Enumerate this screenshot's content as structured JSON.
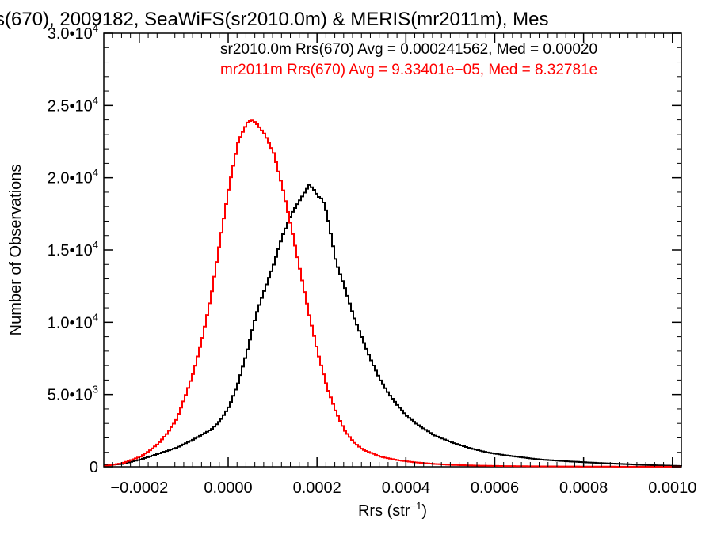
{
  "chart_data": {
    "type": "line",
    "title": "s(670), 2009182, SeaWiFS(sr2010.0m) & MERIS(mr2011m), Mes",
    "xlabel_main": "Rrs (str",
    "xlabel_sup": "−1",
    "xlabel_end": ")",
    "ylabel": "Number of Observations",
    "xlim": [
      -0.00028,
      0.00102
    ],
    "ylim": [
      0,
      30000
    ],
    "x_ticks": [
      {
        "value": -0.0002,
        "label": "−0.0002"
      },
      {
        "value": 0.0,
        "label": "0.0000"
      },
      {
        "value": 0.0002,
        "label": "0.0002"
      },
      {
        "value": 0.0004,
        "label": "0.0004"
      },
      {
        "value": 0.0006,
        "label": "0.0006"
      },
      {
        "value": 0.0008,
        "label": "0.0008"
      },
      {
        "value": 0.001,
        "label": "0.0010"
      }
    ],
    "y_ticks": [
      {
        "value": 0,
        "mant": "0",
        "exp": ""
      },
      {
        "value": 5000,
        "mant": "5.0•10",
        "exp": "3"
      },
      {
        "value": 10000,
        "mant": "1.0•10",
        "exp": "4"
      },
      {
        "value": 15000,
        "mant": "1.5•10",
        "exp": "4"
      },
      {
        "value": 20000,
        "mant": "2.0•10",
        "exp": "4"
      },
      {
        "value": 25000,
        "mant": "2.5•10",
        "exp": "4"
      },
      {
        "value": 30000,
        "mant": "3.0•10",
        "exp": "4"
      }
    ],
    "legend": [
      {
        "label": "sr2010.0m Rrs(670) Avg = 0.000241562, Med = 0.00020",
        "color": "#000000"
      },
      {
        "label": "mr2011m Rrs(670) Avg = 9.33401e−05, Med = 8.32781e",
        "color": "#ff0000"
      }
    ],
    "series": [
      {
        "color": "#000000",
        "x": [
          -0.00028,
          -0.00024,
          -0.0002,
          -0.00016,
          -0.00012,
          -8e-05,
          -4e-05,
          -2e-05,
          0.0,
          2e-05,
          4e-05,
          6e-05,
          8e-05,
          0.0001,
          0.00012,
          0.00014,
          0.00016,
          0.00018,
          0.00019,
          0.0002,
          0.00021,
          0.00022,
          0.00024,
          0.00026,
          0.00028,
          0.0003,
          0.00032,
          0.00034,
          0.00036,
          0.00038,
          0.0004,
          0.00042,
          0.00044,
          0.00046,
          0.0005,
          0.00054,
          0.00058,
          0.00062,
          0.00066,
          0.0007,
          0.00076,
          0.00082,
          0.00088,
          0.00094,
          0.001,
          0.00102
        ],
        "y": [
          100,
          200,
          500,
          900,
          1300,
          1900,
          2600,
          3200,
          4200,
          5800,
          8000,
          10500,
          12300,
          14000,
          16000,
          17500,
          18500,
          19500,
          19200,
          18700,
          18500,
          17500,
          14200,
          12400,
          10400,
          8800,
          7300,
          6000,
          5000,
          4200,
          3500,
          3000,
          2600,
          2200,
          1700,
          1300,
          1000,
          800,
          650,
          500,
          380,
          280,
          200,
          120,
          70,
          50
        ]
      },
      {
        "color": "#ff0000",
        "x": [
          -0.00028,
          -0.00024,
          -0.0002,
          -0.00018,
          -0.00016,
          -0.00014,
          -0.00012,
          -0.0001,
          -8e-05,
          -6e-05,
          -4e-05,
          -2e-05,
          0.0,
          2e-05,
          4e-05,
          5e-05,
          6e-05,
          8e-05,
          0.0001,
          0.00012,
          0.00014,
          0.00016,
          0.00018,
          0.0002,
          0.00022,
          0.00024,
          0.00026,
          0.00028,
          0.0003,
          0.00034,
          0.00038,
          0.00042,
          0.00046,
          0.0005,
          0.00056,
          0.00062,
          0.0007,
          0.0008,
          0.0009,
          0.001,
          0.00102
        ],
        "y": [
          50,
          250,
          700,
          1100,
          1600,
          2300,
          3200,
          4800,
          6600,
          9000,
          12000,
          15800,
          19500,
          22500,
          23800,
          24000,
          23800,
          23000,
          21700,
          19300,
          16500,
          13500,
          10500,
          7800,
          5500,
          3800,
          2500,
          1700,
          1200,
          700,
          450,
          300,
          200,
          130,
          80,
          50,
          30,
          15,
          8,
          5,
          5
        ]
      }
    ]
  }
}
